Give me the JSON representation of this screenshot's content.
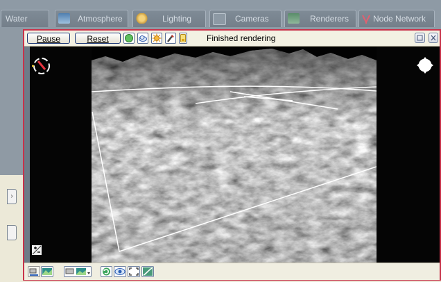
{
  "tabs": [
    {
      "label": "Water"
    },
    {
      "label": "Atmosphere",
      "icon": "atmosphere-icon"
    },
    {
      "label": "Lighting",
      "icon": "sun-icon"
    },
    {
      "label": "Cameras",
      "icon": "camera-icon"
    },
    {
      "label": "Renderers",
      "icon": "renderer-icon"
    },
    {
      "label": "Node Network",
      "icon": "node-network-icon"
    }
  ],
  "toolbar": {
    "pause_label": "Pause",
    "reset_label": "Reset",
    "status": "Finished rendering",
    "icons": [
      "terrain-sphere-icon",
      "cloud-icon",
      "sun-icon",
      "brush-icon",
      "battery-icon"
    ]
  },
  "viewport": {
    "render": "grayscale terrain preview with white wireframe grid",
    "overlay_icons": [
      "camera-compass-icon",
      "navigation-pad-icon",
      "zoom-plus-minus-icon"
    ]
  },
  "bottom_toolbar": {
    "icons": [
      "camera-preview-icon",
      "camera-image-dropdown-icon",
      "refresh-icon",
      "eye-icon",
      "fit-view-icon",
      "curve-icon"
    ]
  },
  "colors": {
    "window_border": "#c8324a",
    "tabstrip_bg": "#8e9aa5",
    "toolbar_bg": "#f3f1e3",
    "render_bg": "#050505"
  }
}
